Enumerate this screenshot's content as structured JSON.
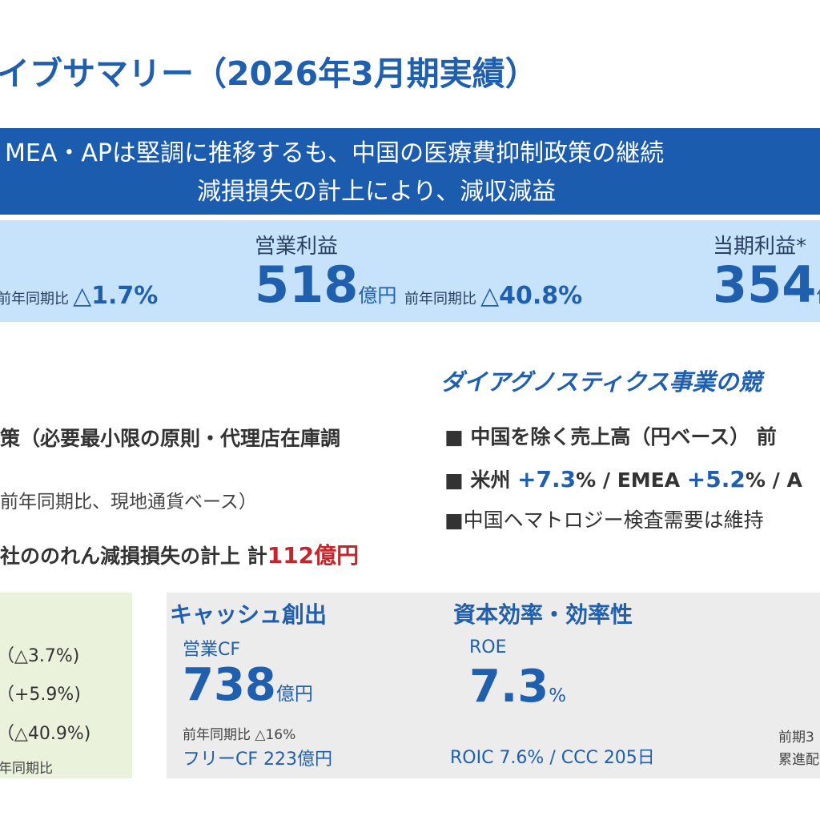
{
  "title": "イブサマリー（2026年3月期実績）",
  "banner": {
    "line1": "MEA・APは堅調に推移するも、中国の医療費抑制政策の継続",
    "line2": "減損損失の計上により、減収減益"
  },
  "kpis": {
    "sales_yoy_label": "前年同期比",
    "sales_yoy_value": "△1.7%",
    "op_label": "営業利益",
    "op_value": "518",
    "op_unit": "億円",
    "op_yoy_label": "前年同期比",
    "op_yoy_value": "△40.8%",
    "net_label": "当期利益*",
    "net_value": "354",
    "net_unit": "億"
  },
  "left": {
    "line1": "策（必要最小限の原則・代理店在庫調",
    "line2": "前年同期比、現地通貨ベース）",
    "line3_prefix": "社ののれん減損損失の計上  計",
    "line3_value": "112億円"
  },
  "right": {
    "title": "ダイアグノスティクス事業の競",
    "b1_marker": "■",
    "b1_text": "中国を除く売上高（円ベース）  前",
    "b2_marker": "■",
    "b2_a": "米州 ",
    "b2_b": "+7.3",
    "b2_c": "% / EMEA ",
    "b2_d": "+5.2",
    "b2_e": "% / A",
    "b3_marker": "■",
    "b3_text": "中国ヘマトロジー検査需要は維持"
  },
  "green_box": {
    "row1": "（△3.7%)",
    "row2": "（+5.9%)",
    "row3": "（△40.9%)",
    "note": "年同期比"
  },
  "cash": {
    "title": "キャッシュ創出",
    "label": "営業CF",
    "value": "738",
    "unit": "億円",
    "yoy": "前年同期比 △16%",
    "fcf": "フリーCF 223億円"
  },
  "capital": {
    "title": "資本効率・効率性",
    "label": "ROE",
    "value": "7.3",
    "unit": "%",
    "sub": "ROIC 7.6% / CCC 205日"
  },
  "far_right": {
    "line1": "前期3",
    "line2": "累進配"
  }
}
